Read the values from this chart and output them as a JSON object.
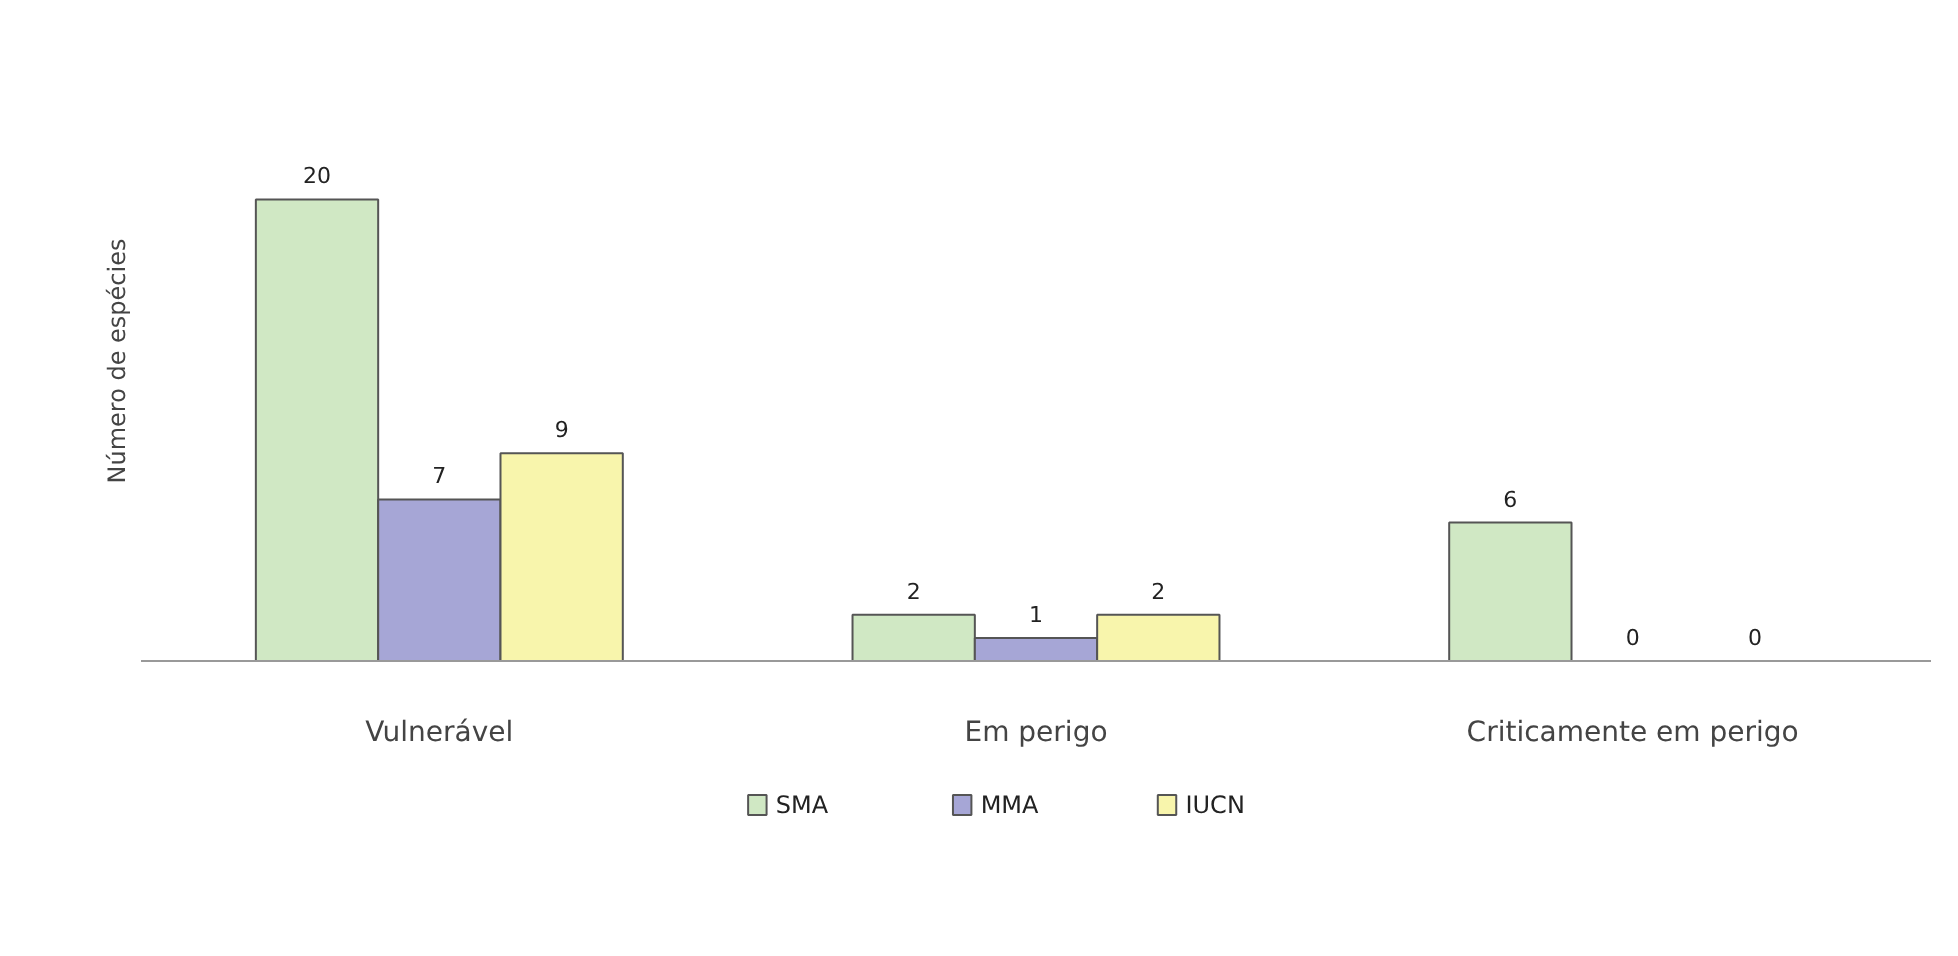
{
  "chart_data": {
    "type": "bar",
    "ylabel": "Número de espécies",
    "categories": [
      "Vulnerável",
      "Em perigo",
      "Criticamente em perigo"
    ],
    "series": [
      {
        "name": "SMA",
        "color": "#d0e8c4",
        "values": [
          20,
          2,
          6
        ]
      },
      {
        "name": "MMA",
        "color": "#a6a6d6",
        "values": [
          7,
          1,
          0
        ]
      },
      {
        "name": "IUCN",
        "color": "#f8f5ac",
        "values": [
          9,
          2,
          0
        ]
      }
    ],
    "data_labels": true,
    "legend": "bottom",
    "grid": false
  }
}
